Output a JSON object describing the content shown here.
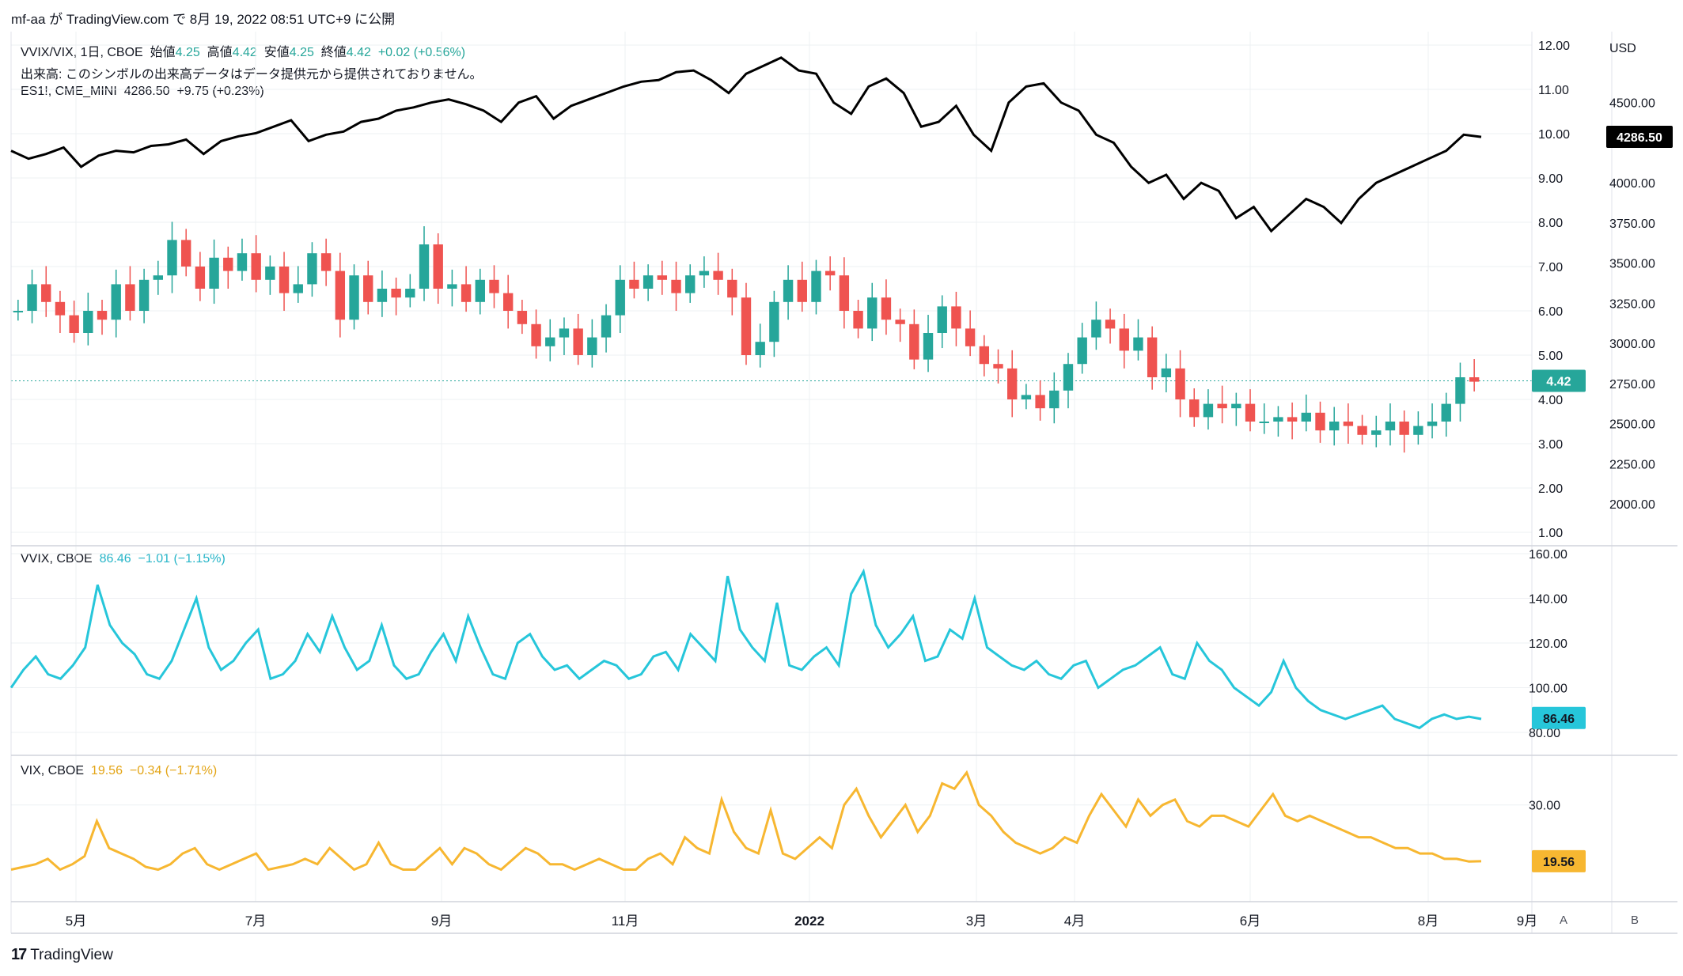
{
  "header": {
    "text": "mf-aa が TradingView.com で 8月 19, 2022 08:51 UTC+9 に公開"
  },
  "legend_main": {
    "symbol": "VVIX/VIX, 1日, CBOE",
    "o_label": "始値",
    "o": "4.25",
    "h_label": "高値",
    "h": "4.42",
    "l_label": "安値",
    "l": "4.25",
    "c_label": "終値",
    "c": "4.42",
    "change": "+0.02 (+0.56%)",
    "volume_note": "出来高: このシンボルの出来高データはデータ提供元から提供されておりません。"
  },
  "legend_es": {
    "symbol": "ES1!, CME_MINI",
    "value": "4286.50",
    "change": "+9.75 (+0.23%)"
  },
  "legend_vvix": {
    "symbol": "VVIX, CBOE",
    "value": "86.46",
    "change": "−1.01 (−1.15%)"
  },
  "legend_vix": {
    "symbol": "VIX, CBOE",
    "value": "19.56",
    "change": "−0.34 (−1.71%)"
  },
  "colors": {
    "up": "#26a69a",
    "down": "#ef5350",
    "es": "#000000",
    "vvix": "#26c6da",
    "vix": "#f7b731",
    "grid": "#eef0f3"
  },
  "axis": {
    "currency": "USD",
    "price_badge_ratio": "4.42",
    "price_badge_es": "4286.50",
    "price_badge_vvix": "86.46",
    "price_badge_vix": "19.56",
    "btn_a": "A",
    "btn_b": "B"
  },
  "footer": {
    "brand": "TradingView",
    "logo": "17"
  },
  "chart_data": [
    {
      "type": "candlestick",
      "title": "VVIX/VIX, 1日, CBOE",
      "ylim": [
        1,
        12
      ],
      "ticks": [
        "1.00",
        "2.00",
        "3.00",
        "4.00",
        "5.00",
        "6.00",
        "7.00",
        "8.00",
        "9.00",
        "10.00",
        "11.00",
        "12.00"
      ],
      "months": [
        "5月",
        "7月",
        "9月",
        "11月",
        "2022",
        "3月",
        "4月",
        "6月",
        "8月",
        "9月"
      ],
      "ratio": [
        6.0,
        6.6,
        6.2,
        5.9,
        5.5,
        6.0,
        5.8,
        6.6,
        6.0,
        6.7,
        6.8,
        7.6,
        7.0,
        6.5,
        7.2,
        6.9,
        7.3,
        6.7,
        7.0,
        6.4,
        6.6,
        7.3,
        6.9,
        5.8,
        6.8,
        6.2,
        6.5,
        6.3,
        6.5,
        7.5,
        6.5,
        6.6,
        6.2,
        6.7,
        6.4,
        6.0,
        5.7,
        5.2,
        5.4,
        5.6,
        5.0,
        5.4,
        5.9,
        6.7,
        6.5,
        6.8,
        6.7,
        6.4,
        6.8,
        6.9,
        6.7,
        6.3,
        5.0,
        5.3,
        6.2,
        6.7,
        6.2,
        6.9,
        6.8,
        6.0,
        5.6,
        6.3,
        5.8,
        5.7,
        4.9,
        5.5,
        6.1,
        5.6,
        5.2,
        4.8,
        4.7,
        4.0,
        4.1,
        3.8,
        4.2,
        4.8,
        5.4,
        5.8,
        5.6,
        5.1,
        5.4,
        4.5,
        4.7,
        4.0,
        3.6,
        3.9,
        3.8,
        3.9,
        3.5,
        3.5,
        3.6,
        3.5,
        3.7,
        3.3,
        3.5,
        3.4,
        3.2,
        3.3,
        3.5,
        3.2,
        3.4,
        3.5,
        3.9,
        4.5,
        4.4
      ],
      "es": [
        4200,
        4150,
        4180,
        4220,
        4100,
        4170,
        4200,
        4190,
        4230,
        4240,
        4270,
        4180,
        4260,
        4290,
        4310,
        4350,
        4390,
        4260,
        4300,
        4320,
        4380,
        4400,
        4450,
        4470,
        4500,
        4520,
        4490,
        4450,
        4380,
        4500,
        4540,
        4400,
        4480,
        4520,
        4560,
        4600,
        4630,
        4640,
        4690,
        4700,
        4640,
        4560,
        4680,
        4730,
        4780,
        4700,
        4680,
        4500,
        4430,
        4600,
        4650,
        4560,
        4350,
        4380,
        4480,
        4300,
        4200,
        4500,
        4600,
        4620,
        4500,
        4450,
        4300,
        4250,
        4100,
        4000,
        4050,
        3900,
        4000,
        3950,
        3780,
        3850,
        3700,
        3800,
        3900,
        3850,
        3750,
        3900,
        4000,
        4050,
        4100,
        4150,
        4200,
        4300,
        4286
      ],
      "vvix": [
        100,
        108,
        114,
        106,
        104,
        110,
        118,
        146,
        128,
        120,
        115,
        106,
        104,
        112,
        126,
        140,
        118,
        108,
        112,
        120,
        126,
        104,
        106,
        112,
        124,
        116,
        132,
        118,
        108,
        112,
        128,
        110,
        104,
        106,
        116,
        124,
        112,
        132,
        118,
        106,
        104,
        120,
        124,
        114,
        108,
        110,
        104,
        108,
        112,
        110,
        104,
        106,
        114,
        116,
        108,
        124,
        118,
        112,
        150,
        126,
        118,
        112,
        138,
        110,
        108,
        114,
        118,
        110,
        142,
        152,
        128,
        118,
        124,
        132,
        112,
        114,
        126,
        122,
        140,
        118,
        114,
        110,
        108,
        112,
        106,
        104,
        110,
        112,
        100,
        104,
        108,
        110,
        114,
        118,
        106,
        104,
        120,
        112,
        108,
        100,
        96,
        92,
        98,
        112,
        100,
        94,
        90,
        88,
        86,
        88,
        90,
        92,
        86,
        84,
        82,
        86,
        88,
        86,
        87,
        86
      ],
      "vix": [
        18,
        18.5,
        19,
        20,
        18,
        19,
        20.5,
        27,
        22,
        21,
        20,
        18.5,
        18,
        19,
        21,
        22,
        19,
        18,
        19,
        20,
        21,
        18,
        18.5,
        19,
        20,
        19,
        22,
        20,
        18,
        19,
        23,
        19,
        18,
        18,
        20,
        22,
        19,
        22,
        21,
        19,
        18,
        20,
        22,
        21,
        19,
        19,
        18,
        19,
        20,
        19,
        18,
        18,
        20,
        21,
        19,
        24,
        22,
        21,
        31,
        25,
        22,
        21,
        29,
        21,
        20,
        22,
        24,
        22,
        30,
        33,
        28,
        24,
        27,
        30,
        25,
        28,
        34,
        33,
        36,
        30,
        28,
        25,
        23,
        22,
        21,
        22,
        24,
        23,
        28,
        32,
        29,
        26,
        31,
        28,
        30,
        31,
        27,
        26,
        28,
        28,
        27,
        26,
        29,
        32,
        28,
        27,
        28,
        27,
        26,
        25,
        24,
        24,
        23,
        22,
        22,
        21,
        21,
        20,
        20,
        19.5,
        19.56
      ]
    }
  ]
}
